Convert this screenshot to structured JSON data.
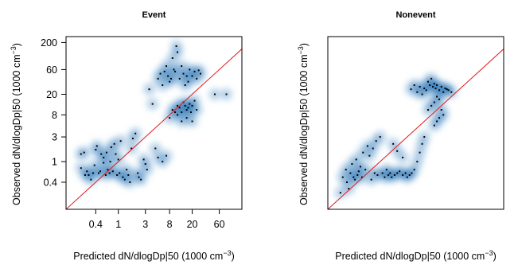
{
  "chart_data": [
    {
      "type": "scatter",
      "title": "Event",
      "xlabel_main": "Predicted dN/dlogDp|50 (1000 cm",
      "xlabel_sup": "−3",
      "xlabel_end": ")",
      "ylabel_main": "Observed dN/dlogDp|50 (1000 cm",
      "ylabel_sup": "−3",
      "ylabel_end": ")",
      "log_scale": true,
      "xlim": [
        0.12,
        150
      ],
      "ylim": [
        0.12,
        260
      ],
      "xticks": [
        {
          "v": 0.4,
          "label": "0.4"
        },
        {
          "v": 1,
          "label": "1"
        },
        {
          "v": 3,
          "label": "3"
        },
        {
          "v": 8,
          "label": "8"
        },
        {
          "v": 20,
          "label": "20"
        },
        {
          "v": 60,
          "label": "60"
        }
      ],
      "yticks": [
        {
          "v": 0.4,
          "label": "0.4"
        },
        {
          "v": 1,
          "label": "1"
        },
        {
          "v": 3,
          "label": "3"
        },
        {
          "v": 8,
          "label": "8"
        },
        {
          "v": 20,
          "label": "20"
        },
        {
          "v": 60,
          "label": "60"
        },
        {
          "v": 200,
          "label": "200"
        }
      ],
      "reference_line": "y = x",
      "line_color": "#e31a1c",
      "density_color": "#1f6fb4",
      "points": [
        [
          0.22,
          0.75
        ],
        [
          0.22,
          1.4
        ],
        [
          0.25,
          1.5
        ],
        [
          0.26,
          0.55
        ],
        [
          0.28,
          0.65
        ],
        [
          0.3,
          0.55
        ],
        [
          0.33,
          0.45
        ],
        [
          0.36,
          0.6
        ],
        [
          0.38,
          0.85
        ],
        [
          0.4,
          1.7
        ],
        [
          0.42,
          2.0
        ],
        [
          0.45,
          0.6
        ],
        [
          0.48,
          0.65
        ],
        [
          0.5,
          1.4
        ],
        [
          0.55,
          0.95
        ],
        [
          0.55,
          1.2
        ],
        [
          0.6,
          0.55
        ],
        [
          0.62,
          1.5
        ],
        [
          0.65,
          0.7
        ],
        [
          0.7,
          0.6
        ],
        [
          0.72,
          1.0
        ],
        [
          0.75,
          1.9
        ],
        [
          0.8,
          0.65
        ],
        [
          0.85,
          2.2
        ],
        [
          0.9,
          1.4
        ],
        [
          0.95,
          0.55
        ],
        [
          1.0,
          1.1
        ],
        [
          1.05,
          0.6
        ],
        [
          1.1,
          2.5
        ],
        [
          1.2,
          0.5
        ],
        [
          1.3,
          0.45
        ],
        [
          1.4,
          0.7
        ],
        [
          1.5,
          0.55
        ],
        [
          1.6,
          0.4
        ],
        [
          1.7,
          1.8
        ],
        [
          1.8,
          2.8
        ],
        [
          2.0,
          3.5
        ],
        [
          2.2,
          0.6
        ],
        [
          2.3,
          0.5
        ],
        [
          2.5,
          0.45
        ],
        [
          2.8,
          1.1
        ],
        [
          3.0,
          0.9
        ],
        [
          3.2,
          0.7
        ],
        [
          3.5,
          25
        ],
        [
          4.0,
          13
        ],
        [
          4.5,
          1.8
        ],
        [
          5.0,
          40
        ],
        [
          5.5,
          50
        ],
        [
          6.0,
          30
        ],
        [
          6.5,
          55
        ],
        [
          7.0,
          70
        ],
        [
          7.5,
          45
        ],
        [
          8.0,
          35
        ],
        [
          8.5,
          40
        ],
        [
          9.0,
          100
        ],
        [
          9.5,
          60
        ],
        [
          10,
          55
        ],
        [
          10.5,
          170
        ],
        [
          11,
          130
        ],
        [
          12,
          40
        ],
        [
          13,
          70
        ],
        [
          14,
          50
        ],
        [
          15,
          30
        ],
        [
          16,
          45
        ],
        [
          17,
          35
        ],
        [
          18,
          60
        ],
        [
          20,
          45
        ],
        [
          22,
          55
        ],
        [
          24,
          40
        ],
        [
          26,
          58
        ],
        [
          28,
          50
        ],
        [
          9,
          10
        ],
        [
          10,
          9
        ],
        [
          11,
          12
        ],
        [
          12,
          11
        ],
        [
          13,
          9
        ],
        [
          14,
          14
        ],
        [
          15,
          12
        ],
        [
          16,
          10
        ],
        [
          17,
          11
        ],
        [
          18,
          13
        ],
        [
          19,
          9
        ],
        [
          20,
          12
        ],
        [
          22,
          15
        ],
        [
          24,
          10
        ],
        [
          16,
          7
        ],
        [
          13,
          6
        ],
        [
          11,
          8
        ],
        [
          8,
          7
        ],
        [
          5,
          1.2
        ],
        [
          6,
          1.0
        ],
        [
          7,
          1.3
        ],
        [
          20,
          6
        ],
        [
          50,
          20
        ],
        [
          80,
          20
        ]
      ]
    },
    {
      "type": "scatter",
      "title": "Nonevent",
      "xlabel_main": "Predicted dN/dlogDp|50 (1000 cm",
      "xlabel_sup": "−3",
      "xlabel_end": ")",
      "ylabel_main": "Observed dN/dlogDp|50 (1000 cm",
      "ylabel_sup": "−3",
      "ylabel_end": ")",
      "log_scale": true,
      "xlim": [
        0.12,
        150
      ],
      "ylim": [
        0.12,
        260
      ],
      "xticks": [],
      "yticks": [],
      "reference_line": "y = x",
      "line_color": "#e31a1c",
      "density_color": "#1f6fb4",
      "points": [
        [
          0.2,
          0.25
        ],
        [
          0.22,
          0.5
        ],
        [
          0.25,
          0.7
        ],
        [
          0.26,
          0.4
        ],
        [
          0.28,
          0.3
        ],
        [
          0.3,
          0.6
        ],
        [
          0.32,
          0.9
        ],
        [
          0.34,
          0.5
        ],
        [
          0.36,
          0.45
        ],
        [
          0.38,
          1.1
        ],
        [
          0.4,
          0.55
        ],
        [
          0.42,
          0.65
        ],
        [
          0.45,
          0.8
        ],
        [
          0.48,
          0.5
        ],
        [
          0.5,
          1.5
        ],
        [
          0.55,
          0.7
        ],
        [
          0.6,
          2.0
        ],
        [
          0.65,
          1.3
        ],
        [
          0.7,
          0.45
        ],
        [
          0.75,
          1.8
        ],
        [
          0.8,
          0.6
        ],
        [
          0.85,
          2.5
        ],
        [
          0.9,
          0.55
        ],
        [
          1.0,
          3.0
        ],
        [
          1.1,
          0.6
        ],
        [
          1.2,
          0.5
        ],
        [
          1.3,
          0.7
        ],
        [
          1.4,
          0.55
        ],
        [
          1.5,
          0.6
        ],
        [
          1.6,
          0.5
        ],
        [
          1.8,
          0.55
        ],
        [
          2.0,
          0.6
        ],
        [
          2.2,
          0.65
        ],
        [
          2.5,
          0.55
        ],
        [
          2.8,
          0.6
        ],
        [
          3.0,
          0.5
        ],
        [
          3.3,
          0.55
        ],
        [
          3.6,
          0.6
        ],
        [
          4.0,
          0.7
        ],
        [
          4.5,
          1.0
        ],
        [
          5.0,
          1.5
        ],
        [
          5.5,
          2.2
        ],
        [
          6.0,
          3.0
        ],
        [
          3.5,
          25
        ],
        [
          4.0,
          30
        ],
        [
          4.5,
          22
        ],
        [
          5.0,
          28
        ],
        [
          5.5,
          20
        ],
        [
          6.0,
          26
        ],
        [
          6.5,
          24
        ],
        [
          7.0,
          35
        ],
        [
          7.5,
          30
        ],
        [
          8.0,
          40
        ],
        [
          8.5,
          28
        ],
        [
          9.0,
          32
        ],
        [
          9.5,
          26
        ],
        [
          10,
          30
        ],
        [
          11,
          24
        ],
        [
          12,
          28
        ],
        [
          13,
          22
        ],
        [
          14,
          26
        ],
        [
          15,
          25
        ],
        [
          16,
          24
        ],
        [
          18,
          22
        ],
        [
          10,
          18
        ],
        [
          11,
          16
        ],
        [
          9,
          14
        ],
        [
          8,
          12
        ],
        [
          7,
          10
        ],
        [
          12,
          10
        ],
        [
          13,
          8
        ],
        [
          11,
          7
        ],
        [
          10,
          6
        ],
        [
          9,
          5
        ],
        [
          2.5,
          1.2
        ],
        [
          2.0,
          1.6
        ],
        [
          1.7,
          2.2
        ]
      ]
    }
  ]
}
